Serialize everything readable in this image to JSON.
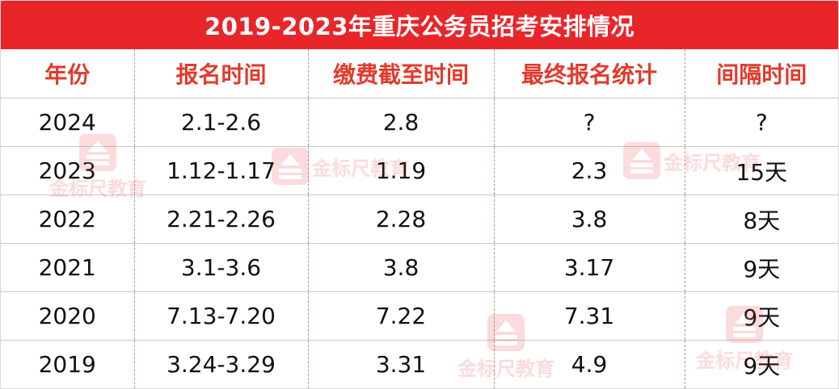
{
  "title": "2019-2023年重庆公务员招考安排情况",
  "columns": [
    "年份",
    "报名时间",
    "缴费截至时间",
    "最终报名统计",
    "间隔时间"
  ],
  "rows": [
    [
      "2024",
      "2.1-2.6",
      "2.8",
      "?",
      "?"
    ],
    [
      "2023",
      "1.12-1.17",
      "1.19",
      "2.3",
      "15天"
    ],
    [
      "2022",
      "2.21-2.26",
      "2.28",
      "3.8",
      "8天"
    ],
    [
      "2021",
      "3.1-3.6",
      "3.8",
      "3.17",
      "9天"
    ],
    [
      "2020",
      "7.13-7.20",
      "7.22",
      "7.31",
      "9天"
    ],
    [
      "2019",
      "3.24-3.29",
      "3.31",
      "4.9",
      "9天"
    ]
  ],
  "watermark_text": "金标尺教育",
  "colors": {
    "title_bg": "#e8262a",
    "header_text": "#e23a2c",
    "body_text": "#111111"
  }
}
